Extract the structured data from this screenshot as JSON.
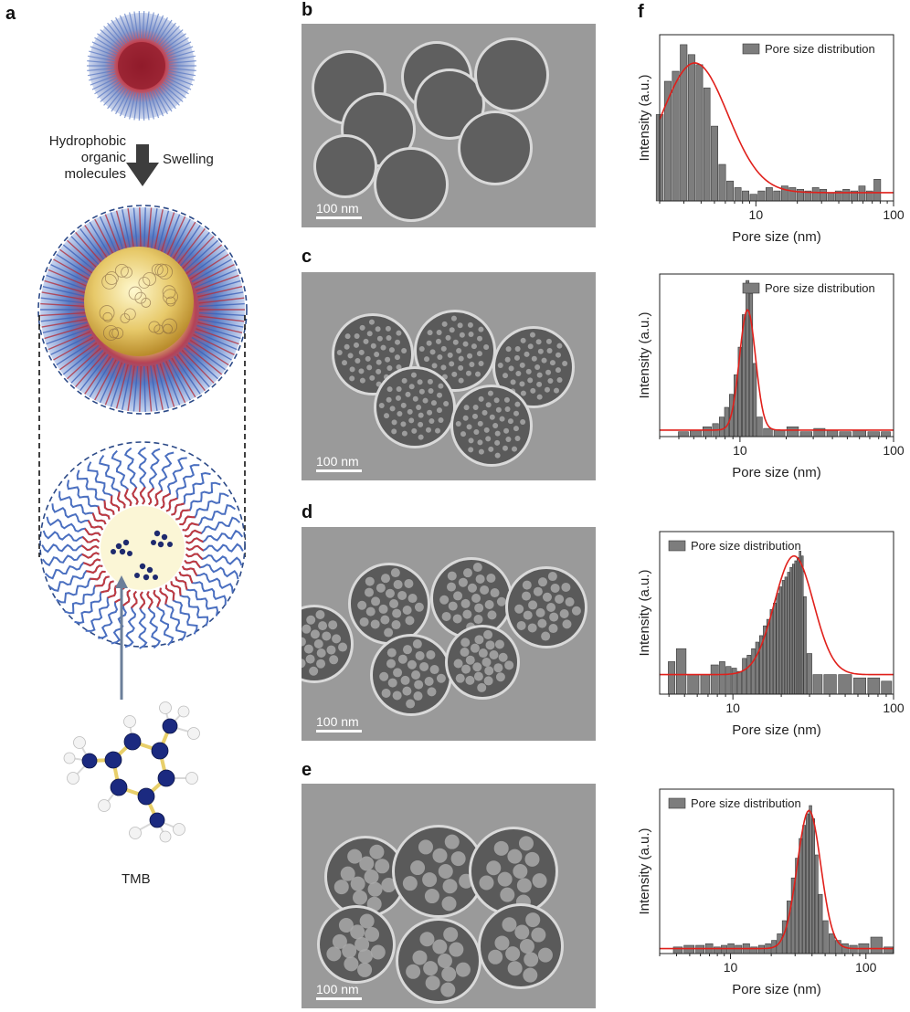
{
  "panel_labels": {
    "a": "a",
    "b": "b",
    "c": "c",
    "d": "d",
    "e": "e",
    "f": "f"
  },
  "schematic": {
    "left_label": "Hydrophobic\norganic\nmolecules",
    "right_label": "Swelling",
    "molecule_label": "TMB"
  },
  "tem_images": [
    {
      "panel": "b",
      "scale_bar": "100 nm",
      "pore_style": "none"
    },
    {
      "panel": "c",
      "scale_bar": "100 nm",
      "pore_style": "small"
    },
    {
      "panel": "d",
      "scale_bar": "100 nm",
      "pore_style": "medium"
    },
    {
      "panel": "e",
      "scale_bar": "100 nm",
      "pore_style": "large"
    }
  ],
  "colors": {
    "bar_fill": "#7d7d7d",
    "bar_stroke": "#3a3a3a",
    "fit_line": "#e0201b",
    "tem_background": "#9a9a9a",
    "arrow": "#3d3d3d",
    "core": "#f4eec4"
  },
  "chart_data": [
    {
      "type": "bar",
      "legend": "Pore size distribution",
      "xlabel": "Pore size (nm)",
      "ylabel": "Intensity (a.u.)",
      "xscale": "log",
      "xlim": [
        2,
        100
      ],
      "xticks": [
        10,
        100
      ],
      "xticklabels": [
        "10",
        "100"
      ],
      "ylim": [
        0,
        1
      ],
      "legend_position": "top-right",
      "bars": {
        "x": [
          2.0,
          2.3,
          2.6,
          3.0,
          3.4,
          3.9,
          4.4,
          5.0,
          5.7,
          6.5,
          7.4,
          8.4,
          9.6,
          11,
          12.5,
          14.2,
          16.2,
          18.4,
          21,
          24,
          27,
          31,
          35,
          40,
          45,
          52,
          59,
          67,
          76
        ],
        "values": [
          0.52,
          0.72,
          0.78,
          0.94,
          0.88,
          0.82,
          0.68,
          0.45,
          0.22,
          0.12,
          0.08,
          0.06,
          0.04,
          0.06,
          0.08,
          0.06,
          0.09,
          0.08,
          0.07,
          0.06,
          0.08,
          0.07,
          0.05,
          0.06,
          0.07,
          0.06,
          0.09,
          0.06,
          0.13
        ]
      },
      "fit": {
        "type": "lognormal",
        "center": 3.6,
        "width": 0.55,
        "amplitude": 0.78,
        "baseline": 0.05
      }
    },
    {
      "type": "bar",
      "legend": "Pore size distribution",
      "xlabel": "Pore size (nm)",
      "ylabel": "Intensity (a.u.)",
      "xscale": "log",
      "xlim": [
        3,
        100
      ],
      "xticks": [
        10,
        100
      ],
      "xticklabels": [
        "10",
        "100"
      ],
      "ylim": [
        0,
        1
      ],
      "legend_position": "top-right",
      "bars": {
        "x": [
          4.2,
          5.2,
          6.2,
          7.0,
          7.6,
          8.2,
          8.8,
          9.4,
          10.0,
          10.6,
          11.2,
          11.8,
          12.5,
          13.2,
          15,
          18,
          22,
          27,
          33,
          40,
          48,
          60,
          75,
          90
        ],
        "values": [
          0.03,
          0.04,
          0.06,
          0.08,
          0.12,
          0.18,
          0.26,
          0.38,
          0.55,
          0.75,
          0.96,
          0.88,
          0.45,
          0.12,
          0.05,
          0.04,
          0.06,
          0.03,
          0.05,
          0.04,
          0.03,
          0.04,
          0.03,
          0.03
        ]
      },
      "fit": {
        "type": "lognormal",
        "center": 11.2,
        "width": 0.12,
        "amplitude": 0.74,
        "baseline": 0.04
      }
    },
    {
      "type": "bar",
      "legend": "Pore size distribution",
      "xlabel": "Pore size (nm)",
      "ylabel": "Intensity (a.u.)",
      "xscale": "log",
      "xlim": [
        3.5,
        100
      ],
      "xticks": [
        10,
        100
      ],
      "xticklabels": [
        "10",
        "100"
      ],
      "ylim": [
        0,
        1
      ],
      "legend_position": "top-left",
      "bars": {
        "x": [
          4.2,
          4.6,
          5.8,
          6.7,
          7.8,
          8.6,
          9.4,
          10.2,
          11.0,
          11.8,
          12.6,
          13.4,
          14.2,
          15.0,
          15.8,
          16.6,
          17.4,
          18.2,
          19.0,
          19.8,
          20.6,
          21.4,
          22.2,
          23.0,
          23.8,
          24.6,
          25.4,
          26.2,
          27.0,
          28.0,
          29.5,
          33,
          40,
          50,
          62,
          75,
          92
        ],
        "values": [
          0.2,
          0.28,
          0.12,
          0.12,
          0.18,
          0.2,
          0.17,
          0.16,
          0.14,
          0.22,
          0.24,
          0.28,
          0.32,
          0.36,
          0.42,
          0.46,
          0.52,
          0.56,
          0.62,
          0.66,
          0.7,
          0.72,
          0.75,
          0.78,
          0.8,
          0.82,
          0.84,
          0.88,
          0.85,
          0.6,
          0.25,
          0.12,
          0.12,
          0.12,
          0.1,
          0.1,
          0.08
        ]
      },
      "fit": {
        "type": "lognormal",
        "center": 24,
        "width": 0.28,
        "amplitude": 0.73,
        "baseline": 0.12
      }
    },
    {
      "type": "bar",
      "legend": "Pore size distribution",
      "xlabel": "Pore size (nm)",
      "ylabel": "Intensity (a.u.)",
      "xscale": "log",
      "xlim": [
        3,
        160
      ],
      "xticks": [
        10,
        100
      ],
      "xticklabels": [
        "10",
        "100"
      ],
      "ylim": [
        0,
        1
      ],
      "legend_position": "top-left",
      "bars": {
        "x": [
          4,
          5,
          6,
          7,
          8,
          9,
          10,
          11.5,
          13,
          15,
          17,
          19,
          21,
          23,
          25,
          27,
          29,
          31,
          33,
          35,
          37,
          39,
          41,
          43,
          46,
          50,
          56,
          62,
          70,
          80,
          95,
          120,
          150
        ],
        "values": [
          0.04,
          0.05,
          0.05,
          0.06,
          0.04,
          0.05,
          0.06,
          0.05,
          0.06,
          0.04,
          0.05,
          0.06,
          0.08,
          0.12,
          0.2,
          0.32,
          0.46,
          0.58,
          0.7,
          0.78,
          0.85,
          0.9,
          0.82,
          0.6,
          0.36,
          0.2,
          0.12,
          0.08,
          0.06,
          0.05,
          0.06,
          0.1,
          0.04
        ]
      },
      "fit": {
        "type": "lognormal",
        "center": 38,
        "width": 0.2,
        "amplitude": 0.84,
        "baseline": 0.03
      }
    }
  ]
}
